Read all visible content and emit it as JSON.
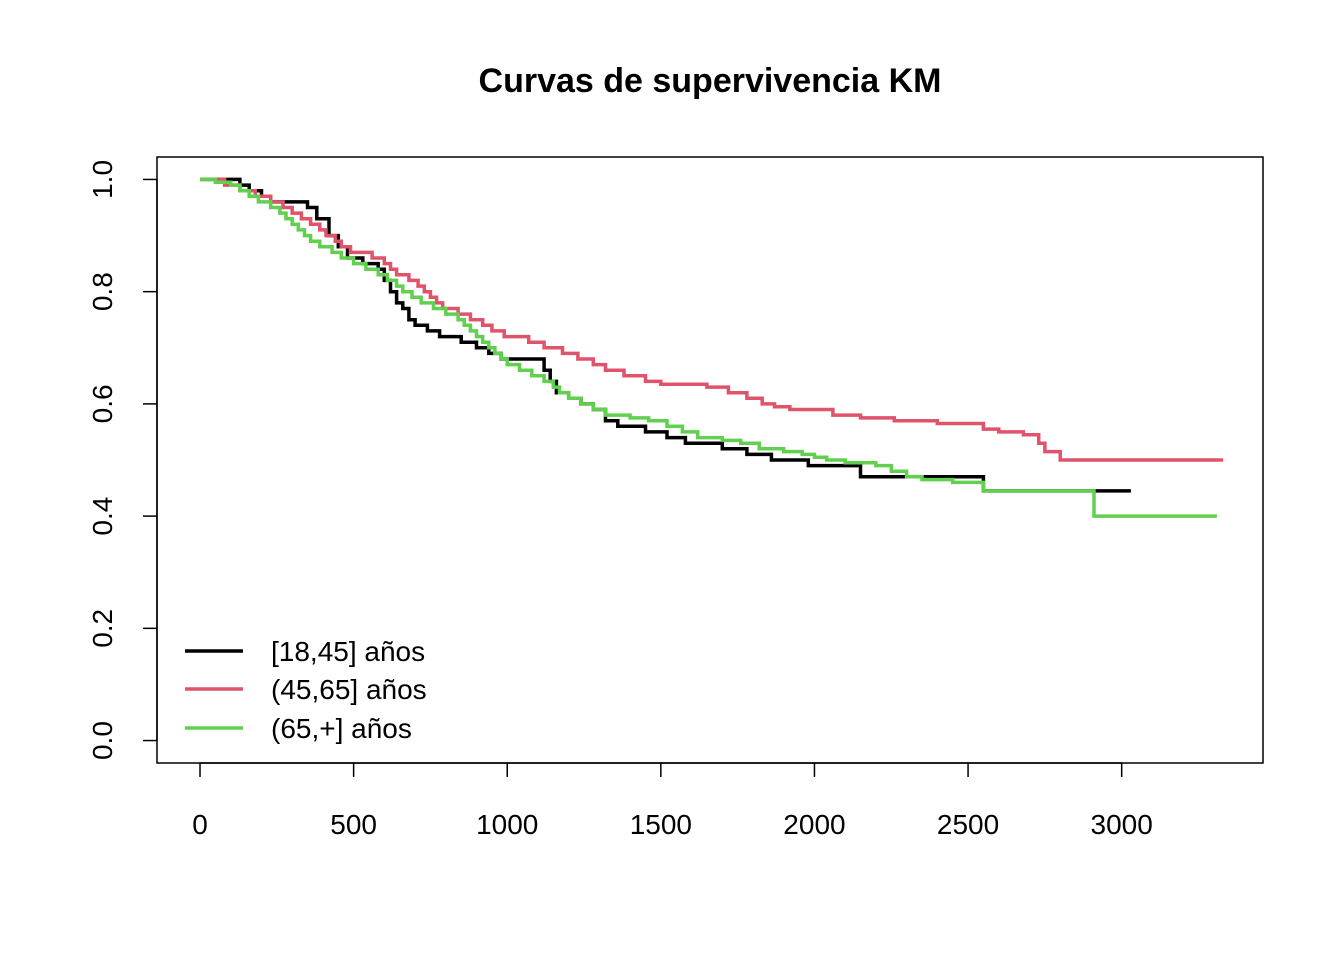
{
  "chart_data": {
    "type": "line",
    "step": true,
    "title": "Curvas de supervivencia KM",
    "xlabel": "",
    "ylabel": "",
    "xlim": [
      -140,
      3460
    ],
    "ylim": [
      -0.04,
      1.04
    ],
    "x_ticks": [
      0,
      500,
      1000,
      1500,
      2000,
      2500,
      3000
    ],
    "y_ticks": [
      0.0,
      0.2,
      0.4,
      0.6,
      0.8,
      1.0
    ],
    "x_tick_labels": [
      "0",
      "500",
      "1000",
      "1500",
      "2000",
      "2500",
      "3000"
    ],
    "y_tick_labels": [
      "0.0",
      "0.2",
      "0.4",
      "0.6",
      "0.8",
      "1.0"
    ],
    "grid": false,
    "legend_position": "bottom-left",
    "series": [
      {
        "name": "[18,45] años",
        "color": "#000000",
        "points": [
          [
            0,
            1.0
          ],
          [
            130,
            0.99
          ],
          [
            160,
            0.98
          ],
          [
            200,
            0.97
          ],
          [
            230,
            0.96
          ],
          [
            350,
            0.95
          ],
          [
            380,
            0.93
          ],
          [
            420,
            0.9
          ],
          [
            450,
            0.88
          ],
          [
            480,
            0.86
          ],
          [
            530,
            0.85
          ],
          [
            580,
            0.84
          ],
          [
            600,
            0.82
          ],
          [
            620,
            0.8
          ],
          [
            640,
            0.78
          ],
          [
            660,
            0.77
          ],
          [
            680,
            0.75
          ],
          [
            700,
            0.74
          ],
          [
            740,
            0.73
          ],
          [
            780,
            0.72
          ],
          [
            850,
            0.71
          ],
          [
            900,
            0.7
          ],
          [
            940,
            0.69
          ],
          [
            980,
            0.68
          ],
          [
            1120,
            0.66
          ],
          [
            1140,
            0.64
          ],
          [
            1160,
            0.62
          ],
          [
            1200,
            0.61
          ],
          [
            1240,
            0.6
          ],
          [
            1280,
            0.59
          ],
          [
            1320,
            0.57
          ],
          [
            1360,
            0.56
          ],
          [
            1450,
            0.55
          ],
          [
            1520,
            0.54
          ],
          [
            1580,
            0.53
          ],
          [
            1700,
            0.52
          ],
          [
            1780,
            0.51
          ],
          [
            1860,
            0.5
          ],
          [
            1980,
            0.49
          ],
          [
            2150,
            0.47
          ],
          [
            2550,
            0.445
          ],
          [
            3030,
            0.445
          ]
        ]
      },
      {
        "name": "(45,65] años",
        "color": "#DF536B",
        "points": [
          [
            0,
            1.0
          ],
          [
            80,
            0.99
          ],
          [
            130,
            0.98
          ],
          [
            180,
            0.97
          ],
          [
            230,
            0.96
          ],
          [
            270,
            0.95
          ],
          [
            300,
            0.94
          ],
          [
            330,
            0.93
          ],
          [
            360,
            0.92
          ],
          [
            390,
            0.91
          ],
          [
            410,
            0.9
          ],
          [
            440,
            0.89
          ],
          [
            460,
            0.88
          ],
          [
            490,
            0.87
          ],
          [
            560,
            0.86
          ],
          [
            600,
            0.85
          ],
          [
            620,
            0.84
          ],
          [
            640,
            0.83
          ],
          [
            680,
            0.82
          ],
          [
            710,
            0.81
          ],
          [
            730,
            0.8
          ],
          [
            750,
            0.79
          ],
          [
            770,
            0.78
          ],
          [
            790,
            0.77
          ],
          [
            840,
            0.76
          ],
          [
            880,
            0.75
          ],
          [
            920,
            0.74
          ],
          [
            950,
            0.73
          ],
          [
            990,
            0.72
          ],
          [
            1070,
            0.71
          ],
          [
            1120,
            0.7
          ],
          [
            1180,
            0.69
          ],
          [
            1230,
            0.68
          ],
          [
            1280,
            0.67
          ],
          [
            1320,
            0.66
          ],
          [
            1380,
            0.65
          ],
          [
            1450,
            0.64
          ],
          [
            1500,
            0.635
          ],
          [
            1650,
            0.63
          ],
          [
            1720,
            0.62
          ],
          [
            1780,
            0.61
          ],
          [
            1830,
            0.6
          ],
          [
            1870,
            0.595
          ],
          [
            1920,
            0.59
          ],
          [
            2060,
            0.58
          ],
          [
            2150,
            0.575
          ],
          [
            2260,
            0.57
          ],
          [
            2400,
            0.565
          ],
          [
            2550,
            0.555
          ],
          [
            2600,
            0.55
          ],
          [
            2680,
            0.545
          ],
          [
            2730,
            0.53
          ],
          [
            2750,
            0.515
          ],
          [
            2800,
            0.5
          ],
          [
            3330,
            0.5
          ]
        ]
      },
      {
        "name": "(65,+] años",
        "color": "#61D04F",
        "points": [
          [
            0,
            1.0
          ],
          [
            50,
            0.995
          ],
          [
            100,
            0.99
          ],
          [
            130,
            0.98
          ],
          [
            160,
            0.97
          ],
          [
            190,
            0.96
          ],
          [
            230,
            0.95
          ],
          [
            260,
            0.94
          ],
          [
            280,
            0.93
          ],
          [
            300,
            0.92
          ],
          [
            320,
            0.91
          ],
          [
            340,
            0.9
          ],
          [
            360,
            0.89
          ],
          [
            390,
            0.88
          ],
          [
            430,
            0.87
          ],
          [
            460,
            0.86
          ],
          [
            500,
            0.85
          ],
          [
            540,
            0.84
          ],
          [
            580,
            0.83
          ],
          [
            610,
            0.82
          ],
          [
            640,
            0.81
          ],
          [
            660,
            0.8
          ],
          [
            690,
            0.79
          ],
          [
            720,
            0.78
          ],
          [
            760,
            0.77
          ],
          [
            800,
            0.76
          ],
          [
            840,
            0.75
          ],
          [
            860,
            0.74
          ],
          [
            880,
            0.73
          ],
          [
            900,
            0.72
          ],
          [
            920,
            0.71
          ],
          [
            940,
            0.7
          ],
          [
            960,
            0.69
          ],
          [
            980,
            0.68
          ],
          [
            1000,
            0.67
          ],
          [
            1040,
            0.66
          ],
          [
            1080,
            0.65
          ],
          [
            1120,
            0.64
          ],
          [
            1150,
            0.63
          ],
          [
            1170,
            0.62
          ],
          [
            1200,
            0.61
          ],
          [
            1240,
            0.6
          ],
          [
            1280,
            0.59
          ],
          [
            1320,
            0.58
          ],
          [
            1400,
            0.575
          ],
          [
            1460,
            0.57
          ],
          [
            1520,
            0.56
          ],
          [
            1570,
            0.55
          ],
          [
            1620,
            0.54
          ],
          [
            1700,
            0.535
          ],
          [
            1760,
            0.53
          ],
          [
            1820,
            0.52
          ],
          [
            1900,
            0.515
          ],
          [
            1960,
            0.51
          ],
          [
            2000,
            0.505
          ],
          [
            2040,
            0.5
          ],
          [
            2100,
            0.495
          ],
          [
            2200,
            0.49
          ],
          [
            2250,
            0.48
          ],
          [
            2300,
            0.47
          ],
          [
            2350,
            0.465
          ],
          [
            2450,
            0.46
          ],
          [
            2550,
            0.445
          ],
          [
            2910,
            0.4
          ],
          [
            3310,
            0.4
          ]
        ]
      }
    ]
  }
}
